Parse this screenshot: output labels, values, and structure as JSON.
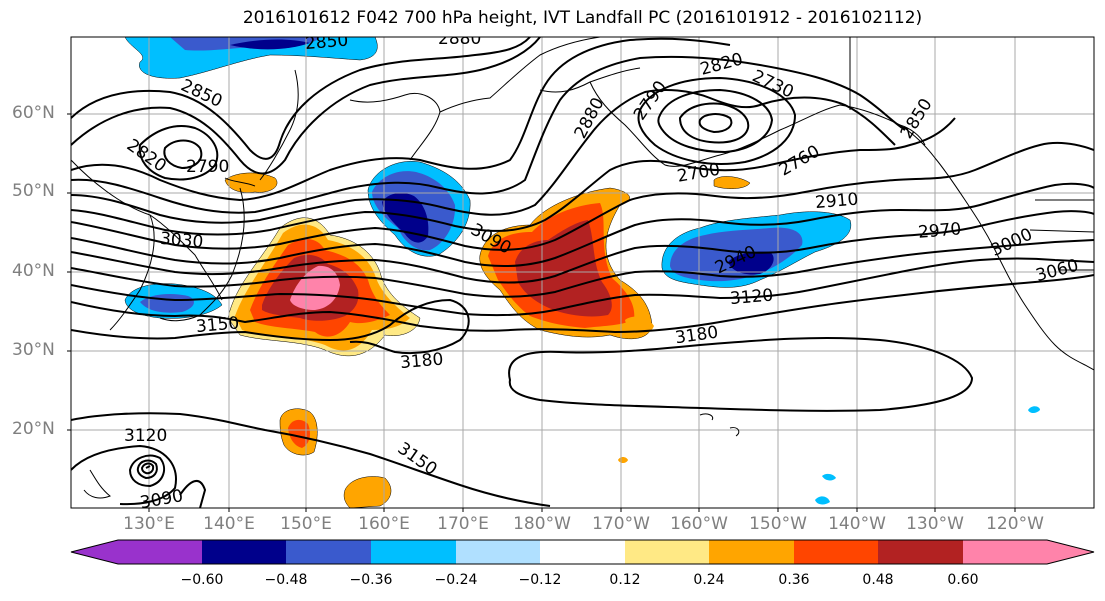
{
  "title": "2016101612 F042 700 hPa height, IVT Landfall PC (2016101912 - 2016102112)",
  "lat_labels": [
    "60°N",
    "50°N",
    "40°N",
    "30°N",
    "20°N"
  ],
  "lon_labels": [
    "130°E",
    "140°E",
    "150°E",
    "160°E",
    "170°E",
    "180°W",
    "170°W",
    "160°W",
    "150°W",
    "140°W",
    "130°W",
    "120°W"
  ],
  "contour_labels": [
    "2850",
    "2880",
    "2820",
    "2730",
    "2790",
    "2850",
    "2880",
    "2850",
    "2820",
    "2790",
    "2700",
    "2760",
    "2910",
    "3030",
    "3090",
    "2940",
    "2970",
    "3000",
    "3060",
    "3150",
    "3120",
    "3180",
    "3180",
    "3120",
    "3090",
    "3150"
  ],
  "colorbar": {
    "tick_labels": [
      "−0.60",
      "−0.48",
      "−0.36",
      "−0.24",
      "−0.12",
      "0.12",
      "0.24",
      "0.36",
      "0.48",
      "0.60"
    ],
    "colors": [
      "#9932cc",
      "#00008b",
      "#3a5acd",
      "#00bfff",
      "#b0e0ff",
      "#ffffff",
      "#ffe985",
      "#ffa500",
      "#ff4500",
      "#b22222",
      "#ff83aa"
    ]
  }
}
